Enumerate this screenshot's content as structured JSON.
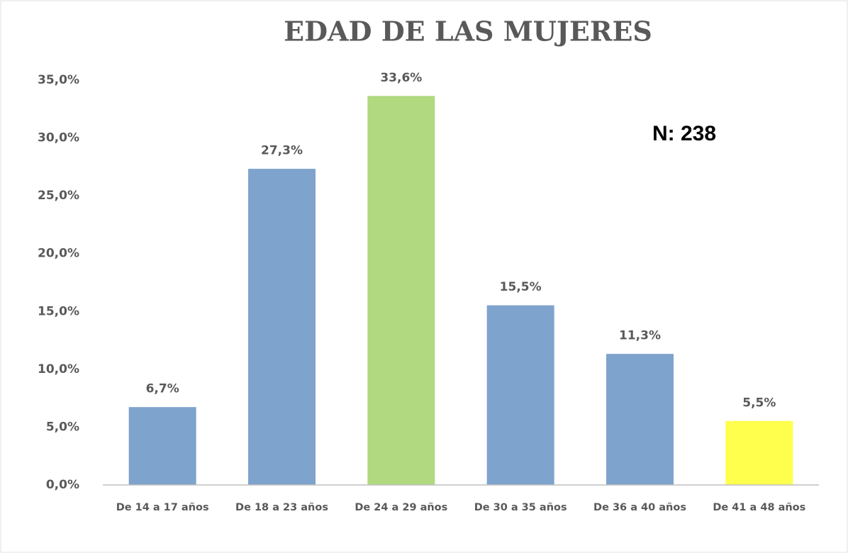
{
  "chart_data": {
    "type": "bar",
    "title": "EDAD DE LAS MUJERES",
    "annotation": "N: 238",
    "categories": [
      "De 14 a 17 años",
      "De 18 a 23 años",
      "De 24 a 29 años",
      "De 30 a 35 años",
      "De 36 a 40 años",
      "De 41 a 48 años"
    ],
    "values": [
      6.7,
      27.3,
      33.6,
      15.5,
      11.3,
      5.5
    ],
    "value_labels": [
      "6,7%",
      "27,3%",
      "33,6%",
      "15,5%",
      "11,3%",
      "5,5%"
    ],
    "colors": [
      "#7ea3cd",
      "#7ea3cd",
      "#b0d980",
      "#7ea3cd",
      "#7ea3cd",
      "#ffff4d"
    ],
    "ylim": [
      0,
      35
    ],
    "yticks": [
      {
        "value": 0,
        "label": "0,0%"
      },
      {
        "value": 5,
        "label": "5,0%"
      },
      {
        "value": 10,
        "label": "10,0%"
      },
      {
        "value": 15,
        "label": "15,0%"
      },
      {
        "value": 20,
        "label": "20,0%"
      },
      {
        "value": 25,
        "label": "25,0%"
      },
      {
        "value": 30,
        "label": "30,0%"
      },
      {
        "value": 35,
        "label": "35,0%"
      }
    ],
    "grid": false
  }
}
